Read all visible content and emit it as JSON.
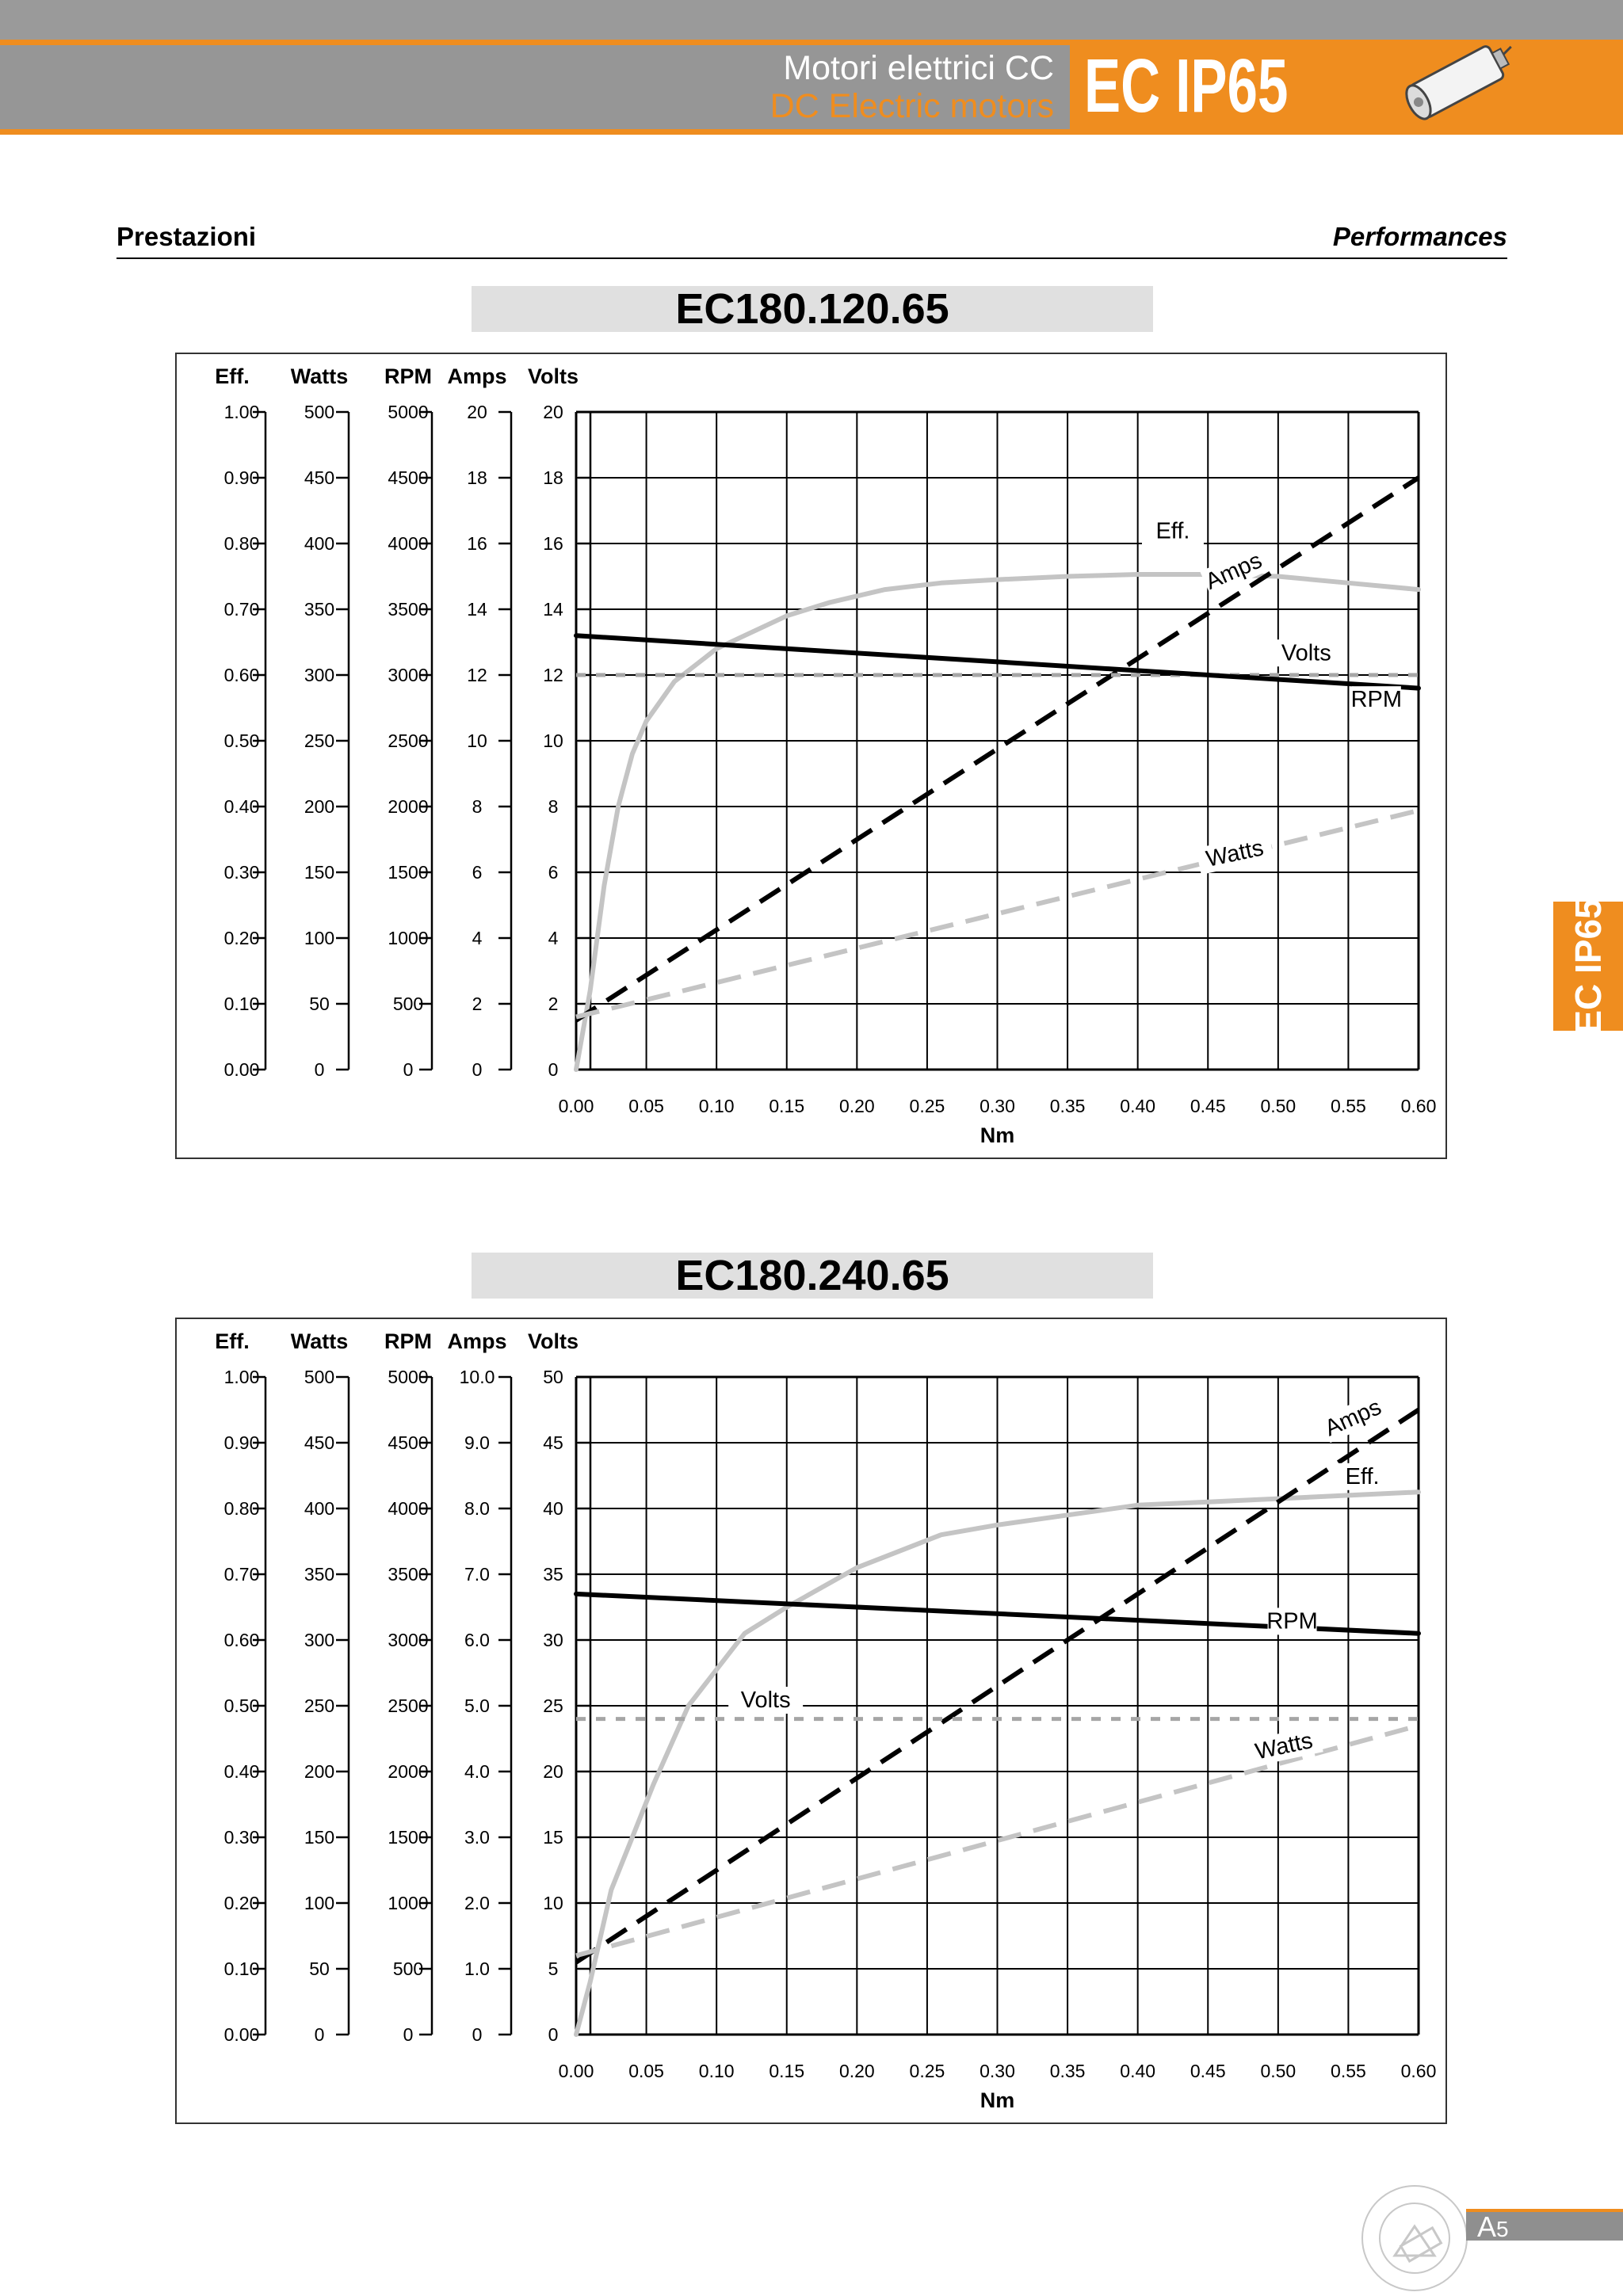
{
  "header": {
    "title_it": "Motori elettrici CC",
    "title_en": "DC Electric motors",
    "brand": "EC IP65"
  },
  "section": {
    "left": "Prestazioni",
    "right": "Performances"
  },
  "side_tab": "EC IP65",
  "footer": {
    "page_prefix": "A",
    "page_number": "5"
  },
  "colors": {
    "orange": "#ef8d1f",
    "gray": "#969696",
    "light_curve": "#c4c4c4"
  },
  "icons": [
    "dc-motor-icon",
    "company-seal-icon"
  ],
  "chart_data": [
    {
      "type": "line",
      "title": "EC180.120.65",
      "xlabel": "Nm",
      "x_ticks": [
        "0.00",
        "0.05",
        "0.10",
        "0.15",
        "0.20",
        "0.25",
        "0.30",
        "0.35",
        "0.40",
        "0.45",
        "0.50",
        "0.55",
        "0.60"
      ],
      "xlim": [
        0,
        0.6
      ],
      "grid": true,
      "axes": [
        {
          "name": "Eff.",
          "ticks": [
            "0.00",
            "0.10",
            "0.20",
            "0.30",
            "0.40",
            "0.50",
            "0.60",
            "0.70",
            "0.80",
            "0.90",
            "1.00"
          ],
          "range": [
            0,
            1.0
          ]
        },
        {
          "name": "Watts",
          "ticks": [
            "0",
            "50",
            "100",
            "150",
            "200",
            "250",
            "300",
            "350",
            "400",
            "450",
            "500"
          ],
          "range": [
            0,
            500
          ]
        },
        {
          "name": "RPM",
          "ticks": [
            "0",
            "500",
            "1000",
            "1500",
            "2000",
            "2500",
            "3000",
            "3500",
            "4000",
            "4500",
            "5000"
          ],
          "range": [
            0,
            5000
          ]
        },
        {
          "name": "Amps",
          "ticks": [
            "0",
            "2",
            "4",
            "6",
            "8",
            "10",
            "12",
            "14",
            "16",
            "18",
            "20"
          ],
          "range": [
            0,
            20
          ]
        },
        {
          "name": "Volts",
          "ticks": [
            "0",
            "2",
            "4",
            "6",
            "8",
            "10",
            "12",
            "14",
            "16",
            "18",
            "20"
          ],
          "range": [
            0,
            20
          ]
        }
      ],
      "series": [
        {
          "name": "Eff.",
          "axis": 0,
          "style": "light-solid",
          "x": [
            0.0,
            0.01,
            0.02,
            0.03,
            0.04,
            0.05,
            0.07,
            0.1,
            0.12,
            0.15,
            0.18,
            0.22,
            0.26,
            0.3,
            0.35,
            0.4,
            0.45,
            0.5,
            0.55,
            0.6
          ],
          "y": [
            0.0,
            0.12,
            0.28,
            0.4,
            0.48,
            0.53,
            0.59,
            0.64,
            0.66,
            0.69,
            0.71,
            0.73,
            0.74,
            0.745,
            0.75,
            0.753,
            0.753,
            0.75,
            0.74,
            0.73
          ]
        },
        {
          "name": "Amps",
          "axis": 3,
          "style": "black-dashed",
          "x": [
            0.0,
            0.6
          ],
          "y": [
            1.5,
            18.0
          ]
        },
        {
          "name": "Volts",
          "axis": 4,
          "style": "gray-dotted",
          "x": [
            0.0,
            0.6
          ],
          "y": [
            12.0,
            12.0
          ]
        },
        {
          "name": "RPM",
          "axis": 2,
          "style": "black-solid",
          "x": [
            0.0,
            0.6
          ],
          "y": [
            3300,
            2900
          ]
        },
        {
          "name": "Watts",
          "axis": 1,
          "style": "light-dashed",
          "x": [
            0.0,
            0.6
          ],
          "y": [
            40,
            197
          ]
        }
      ],
      "labels": [
        {
          "text": "Eff.",
          "x": 0.425,
          "y_axis": 0,
          "y": 0.81,
          "rot": 0
        },
        {
          "text": "Amps",
          "x": 0.47,
          "y_axis": 3,
          "y": 15.0,
          "rot": -24
        },
        {
          "text": "Volts",
          "x": 0.52,
          "y_axis": 4,
          "y": 12.5,
          "rot": 0
        },
        {
          "text": "RPM",
          "x": 0.57,
          "y_axis": 2,
          "y": 2770,
          "rot": 0
        },
        {
          "text": "Watts",
          "x": 0.47,
          "y_axis": 1,
          "y": 160,
          "rot": -12
        }
      ]
    },
    {
      "type": "line",
      "title": "EC180.240.65",
      "xlabel": "Nm",
      "x_ticks": [
        "0.00",
        "0.05",
        "0.10",
        "0.15",
        "0.20",
        "0.25",
        "0.30",
        "0.35",
        "0.40",
        "0.45",
        "0.50",
        "0.55",
        "0.60"
      ],
      "xlim": [
        0,
        0.6
      ],
      "grid": true,
      "axes": [
        {
          "name": "Eff.",
          "ticks": [
            "0.00",
            "0.10",
            "0.20",
            "0.30",
            "0.40",
            "0.50",
            "0.60",
            "0.70",
            "0.80",
            "0.90",
            "1.00"
          ],
          "range": [
            0,
            1.0
          ]
        },
        {
          "name": "Watts",
          "ticks": [
            "0",
            "50",
            "100",
            "150",
            "200",
            "250",
            "300",
            "350",
            "400",
            "450",
            "500"
          ],
          "range": [
            0,
            500
          ]
        },
        {
          "name": "RPM",
          "ticks": [
            "0",
            "500",
            "1000",
            "1500",
            "2000",
            "2500",
            "3000",
            "3500",
            "4000",
            "4500",
            "5000"
          ],
          "range": [
            0,
            5000
          ]
        },
        {
          "name": "Amps",
          "ticks": [
            "0",
            "1.0",
            "2.0",
            "3.0",
            "4.0",
            "5.0",
            "6.0",
            "7.0",
            "8.0",
            "9.0",
            "10.0"
          ],
          "range": [
            0,
            10
          ]
        },
        {
          "name": "Volts",
          "ticks": [
            "0",
            "5",
            "10",
            "15",
            "20",
            "25",
            "30",
            "35",
            "40",
            "45",
            "50"
          ],
          "range": [
            0,
            50
          ]
        }
      ],
      "series": [
        {
          "name": "Eff.",
          "axis": 0,
          "style": "light-solid",
          "x": [
            0.0,
            0.01,
            0.025,
            0.04,
            0.055,
            0.08,
            0.12,
            0.15,
            0.2,
            0.26,
            0.3,
            0.35,
            0.4,
            0.45,
            0.5,
            0.55,
            0.6
          ],
          "y": [
            0.0,
            0.08,
            0.22,
            0.3,
            0.38,
            0.5,
            0.61,
            0.65,
            0.71,
            0.76,
            0.775,
            0.79,
            0.805,
            0.81,
            0.815,
            0.82,
            0.825
          ]
        },
        {
          "name": "Amps",
          "axis": 3,
          "style": "black-dashed",
          "x": [
            0.0,
            0.6
          ],
          "y": [
            1.1,
            9.5
          ]
        },
        {
          "name": "Volts",
          "axis": 4,
          "style": "gray-dotted",
          "x": [
            0.0,
            0.6
          ],
          "y": [
            24.0,
            24.0
          ]
        },
        {
          "name": "RPM",
          "axis": 2,
          "style": "black-solid",
          "x": [
            0.0,
            0.6
          ],
          "y": [
            3350,
            3050
          ]
        },
        {
          "name": "Watts",
          "axis": 1,
          "style": "light-dashed",
          "x": [
            0.0,
            0.6
          ],
          "y": [
            60,
            235
          ]
        }
      ],
      "labels": [
        {
          "text": "Amps",
          "x": 0.555,
          "y_axis": 3,
          "y": 9.3,
          "rot": -24
        },
        {
          "text": "Eff.",
          "x": 0.56,
          "y_axis": 0,
          "y": 0.84,
          "rot": 0
        },
        {
          "text": "RPM",
          "x": 0.51,
          "y_axis": 2,
          "y": 3100,
          "rot": 0
        },
        {
          "text": "Volts",
          "x": 0.135,
          "y_axis": 4,
          "y": 25.0,
          "rot": 0
        },
        {
          "text": "Watts",
          "x": 0.505,
          "y_axis": 1,
          "y": 215,
          "rot": -12
        }
      ]
    }
  ]
}
